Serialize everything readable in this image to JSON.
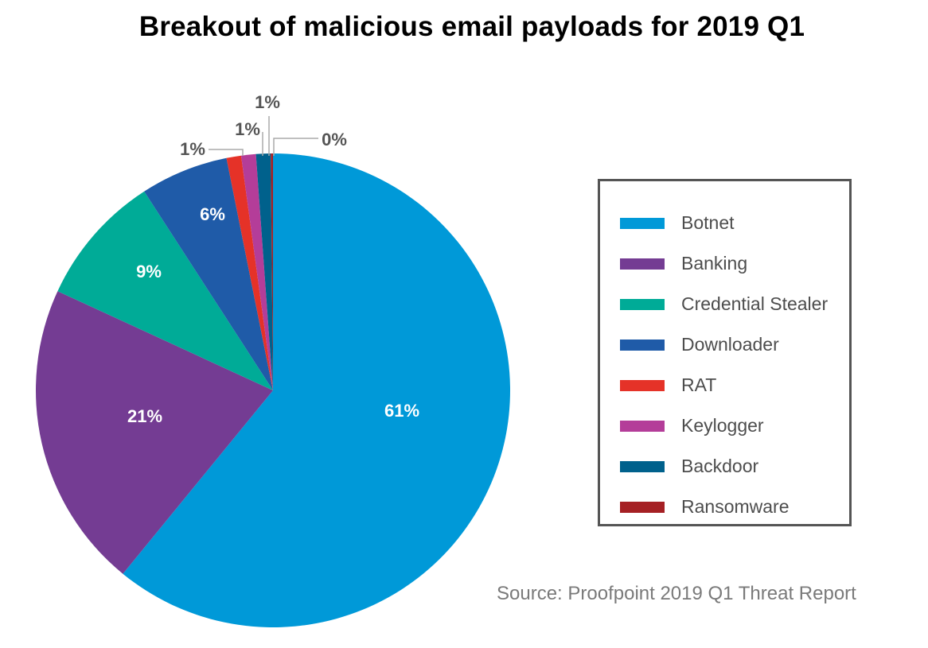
{
  "chart_data": {
    "type": "pie",
    "title": "Breakout of malicious email payloads for 2019 Q1",
    "slices": [
      {
        "name": "Botnet",
        "value": 61,
        "label": "61%",
        "color": "#0099d8"
      },
      {
        "name": "Banking",
        "value": 21,
        "label": "21%",
        "color": "#743c93"
      },
      {
        "name": "Credential Stealer",
        "value": 9,
        "label": "9%",
        "color": "#00ab97"
      },
      {
        "name": "Downloader",
        "value": 6,
        "label": "6%",
        "color": "#1f5ba8"
      },
      {
        "name": "RAT",
        "value": 1,
        "label": "1%",
        "color": "#e53228"
      },
      {
        "name": "Keylogger",
        "value": 1,
        "label": "1%",
        "color": "#b43d99"
      },
      {
        "name": "Backdoor",
        "value": 1,
        "label": "1%",
        "color": "#00618c"
      },
      {
        "name": "Ransomware",
        "value": 0.15,
        "label": "0%",
        "color": "#a52024"
      }
    ],
    "legend_position": "right",
    "source": "Source: Proofpoint 2019 Q1 Threat Report"
  }
}
